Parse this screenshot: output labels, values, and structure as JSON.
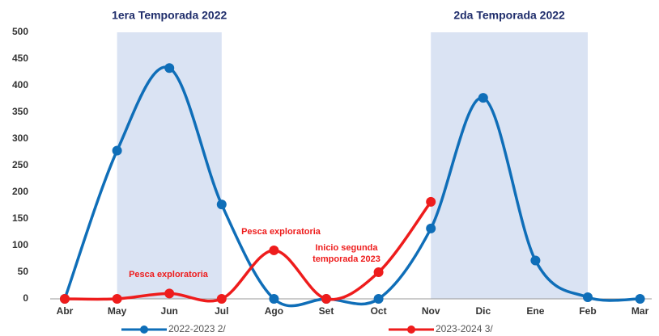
{
  "chart_data": {
    "type": "line",
    "categories": [
      "Abr",
      "May",
      "Jun",
      "Jul",
      "Ago",
      "Set",
      "Oct",
      "Nov",
      "Dic",
      "Ene",
      "Feb",
      "Mar"
    ],
    "series": [
      {
        "name": "2022-2023 2/",
        "color": "#0f6eb8",
        "values": [
          0,
          278,
          433,
          177,
          0,
          0,
          0,
          132,
          377,
          72,
          3,
          0
        ]
      },
      {
        "name": "2023-2024 3/",
        "color": "#ee1c1c",
        "values": [
          0,
          0,
          10,
          0,
          91,
          0,
          50,
          182,
          null,
          null,
          null,
          null
        ]
      }
    ],
    "ylim": [
      0,
      500
    ],
    "yticks": [
      0,
      50,
      100,
      150,
      200,
      250,
      300,
      350,
      400,
      450,
      500
    ],
    "bands": [
      {
        "label": "1era Temporada 2022",
        "from": "May",
        "to": "Jul",
        "color": "#dae3f3"
      },
      {
        "label": "2da Temporada 2022",
        "from": "Nov",
        "to": "Feb",
        "color": "#dae3f3"
      }
    ],
    "annotations": [
      {
        "lines": [
          "Pesca exploratoria"
        ],
        "color": "#ee1c1c"
      },
      {
        "lines": [
          "Pesca exploratoria"
        ],
        "color": "#ee1c1c"
      },
      {
        "lines": [
          "Inicio segunda",
          "temporada 2023"
        ],
        "color": "#ee1c1c"
      }
    ],
    "grid": false
  }
}
